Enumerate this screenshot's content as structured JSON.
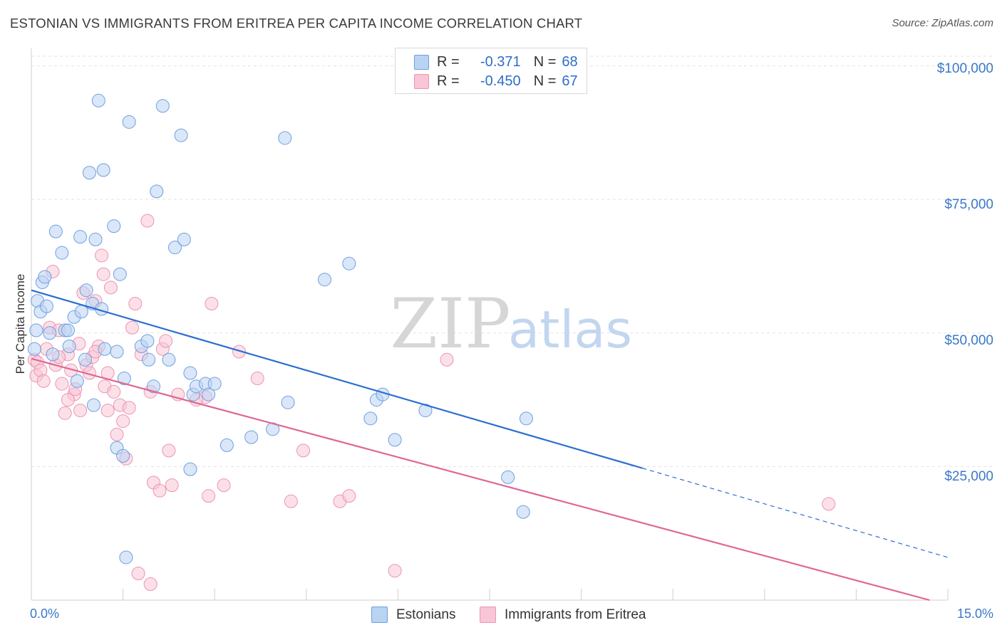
{
  "title": "ESTONIAN VS IMMIGRANTS FROM ERITREA PER CAPITA INCOME CORRELATION CHART",
  "source": "Source: ZipAtlas.com",
  "watermark": {
    "zip": "ZIP",
    "atlas": "atlas"
  },
  "colors": {
    "blue_fill": "#b9d3f3",
    "blue_stroke": "#6f9fe0",
    "blue_line": "#2b6fd0",
    "pink_fill": "#f8c6d6",
    "pink_stroke": "#ec94b1",
    "pink_line": "#e06792",
    "grid": "#e3e3e3",
    "tick_text": "#3a78c9"
  },
  "legend": {
    "rows": [
      {
        "r_label": "R =",
        "r_value": "-0.371",
        "n_label": "N =",
        "n_value": "68"
      },
      {
        "r_label": "R =",
        "r_value": "-0.450",
        "n_label": "N =",
        "n_value": "67"
      }
    ]
  },
  "bottom_legend": {
    "series1": "Estonians",
    "series2": "Immigrants from Eritrea"
  },
  "chart_data": {
    "type": "scatter",
    "title": "ESTONIAN VS IMMIGRANTS FROM ERITREA PER CAPITA INCOME CORRELATION CHART",
    "xlabel": "",
    "ylabel": "Per Capita Income",
    "xlim": [
      0,
      15
    ],
    "ylim": [
      0,
      103000
    ],
    "x_tick_labels": [
      "0.0%",
      "15.0%"
    ],
    "y_ticks": [
      25000,
      50000,
      75000,
      100000
    ],
    "y_tick_labels": [
      "$25,000",
      "$50,000",
      "$75,000",
      "$100,000"
    ],
    "grid": true,
    "legend_placement": "top-center",
    "series": [
      {
        "name": "Estonians",
        "r": -0.371,
        "n": 68,
        "trend": {
          "x0": 0.0,
          "y0": 58000,
          "x1": 10.0,
          "y1": 24700,
          "dashed_to_x": 15.0,
          "dashed_to_y": 8000
        },
        "points": [
          [
            0.05,
            47000
          ],
          [
            0.08,
            50500
          ],
          [
            0.1,
            56000
          ],
          [
            0.15,
            54000
          ],
          [
            0.18,
            59500
          ],
          [
            0.22,
            60500
          ],
          [
            0.25,
            55000
          ],
          [
            0.3,
            50000
          ],
          [
            0.35,
            46000
          ],
          [
            0.4,
            69000
          ],
          [
            0.5,
            65000
          ],
          [
            0.55,
            50500
          ],
          [
            0.6,
            50500
          ],
          [
            0.62,
            47500
          ],
          [
            0.7,
            53000
          ],
          [
            0.75,
            41000
          ],
          [
            0.8,
            68000
          ],
          [
            0.82,
            54000
          ],
          [
            0.88,
            45000
          ],
          [
            0.9,
            58000
          ],
          [
            0.95,
            80000
          ],
          [
            1.0,
            55500
          ],
          [
            1.05,
            67500
          ],
          [
            1.02,
            36500
          ],
          [
            1.1,
            93500
          ],
          [
            1.15,
            54500
          ],
          [
            1.2,
            47000
          ],
          [
            1.18,
            80500
          ],
          [
            1.35,
            70000
          ],
          [
            1.4,
            28500
          ],
          [
            1.45,
            61000
          ],
          [
            1.5,
            27000
          ],
          [
            1.52,
            41500
          ],
          [
            1.6,
            89500
          ],
          [
            1.8,
            47500
          ],
          [
            1.9,
            48500
          ],
          [
            1.92,
            45000
          ],
          [
            2.0,
            40000
          ],
          [
            2.05,
            76500
          ],
          [
            2.15,
            92500
          ],
          [
            2.25,
            45000
          ],
          [
            2.35,
            66000
          ],
          [
            2.45,
            87000
          ],
          [
            2.5,
            67500
          ],
          [
            2.6,
            42500
          ],
          [
            2.65,
            38500
          ],
          [
            2.7,
            40000
          ],
          [
            2.85,
            40500
          ],
          [
            2.9,
            38500
          ],
          [
            3.0,
            40500
          ],
          [
            3.2,
            29000
          ],
          [
            3.6,
            30500
          ],
          [
            3.95,
            32000
          ],
          [
            4.15,
            86500
          ],
          [
            4.2,
            37000
          ],
          [
            4.8,
            60000
          ],
          [
            5.2,
            63000
          ],
          [
            5.55,
            34000
          ],
          [
            5.65,
            37500
          ],
          [
            5.75,
            38500
          ],
          [
            5.95,
            30000
          ],
          [
            6.45,
            35500
          ],
          [
            7.8,
            23000
          ],
          [
            8.05,
            16500
          ],
          [
            8.1,
            34000
          ],
          [
            1.55,
            8000
          ],
          [
            2.6,
            24500
          ],
          [
            1.4,
            46500
          ]
        ]
      },
      {
        "name": "Immigrants from Eritrea",
        "r": -0.45,
        "n": 67,
        "trend": {
          "x0": 0.0,
          "y0": 45200,
          "x1": 14.7,
          "y1": 0
        },
        "points": [
          [
            0.05,
            45000
          ],
          [
            0.08,
            42000
          ],
          [
            0.1,
            44500
          ],
          [
            0.15,
            43000
          ],
          [
            0.2,
            41000
          ],
          [
            0.25,
            47000
          ],
          [
            0.3,
            51000
          ],
          [
            0.35,
            61500
          ],
          [
            0.4,
            44000
          ],
          [
            0.45,
            50500
          ],
          [
            0.5,
            40500
          ],
          [
            0.55,
            35000
          ],
          [
            0.6,
            46000
          ],
          [
            0.65,
            43000
          ],
          [
            0.7,
            38500
          ],
          [
            0.72,
            39500
          ],
          [
            0.78,
            48000
          ],
          [
            0.8,
            35500
          ],
          [
            0.85,
            57500
          ],
          [
            0.9,
            44000
          ],
          [
            0.95,
            42500
          ],
          [
            1.0,
            45500
          ],
          [
            1.05,
            56000
          ],
          [
            1.1,
            47500
          ],
          [
            1.15,
            64500
          ],
          [
            1.18,
            61000
          ],
          [
            1.2,
            40000
          ],
          [
            1.25,
            35500
          ],
          [
            1.3,
            58500
          ],
          [
            1.35,
            39000
          ],
          [
            1.4,
            31000
          ],
          [
            1.45,
            36500
          ],
          [
            1.5,
            33500
          ],
          [
            1.55,
            26500
          ],
          [
            1.6,
            36000
          ],
          [
            1.65,
            51000
          ],
          [
            1.7,
            55500
          ],
          [
            1.75,
            5000
          ],
          [
            1.8,
            46000
          ],
          [
            1.9,
            71000
          ],
          [
            1.95,
            39000
          ],
          [
            2.0,
            22000
          ],
          [
            2.1,
            20500
          ],
          [
            2.15,
            47000
          ],
          [
            2.2,
            48500
          ],
          [
            2.25,
            28000
          ],
          [
            2.3,
            21500
          ],
          [
            2.4,
            38500
          ],
          [
            2.85,
            38000
          ],
          [
            2.9,
            19500
          ],
          [
            2.95,
            55500
          ],
          [
            3.15,
            21500
          ],
          [
            3.4,
            46500
          ],
          [
            3.7,
            41500
          ],
          [
            4.25,
            18500
          ],
          [
            4.45,
            28000
          ],
          [
            5.05,
            18500
          ],
          [
            5.2,
            19500
          ],
          [
            5.95,
            5500
          ],
          [
            6.8,
            45000
          ],
          [
            13.05,
            18000
          ],
          [
            1.95,
            3000
          ],
          [
            0.6,
            37500
          ],
          [
            1.25,
            42500
          ],
          [
            0.45,
            45500
          ],
          [
            2.7,
            37500
          ],
          [
            1.05,
            46500
          ]
        ]
      }
    ]
  }
}
